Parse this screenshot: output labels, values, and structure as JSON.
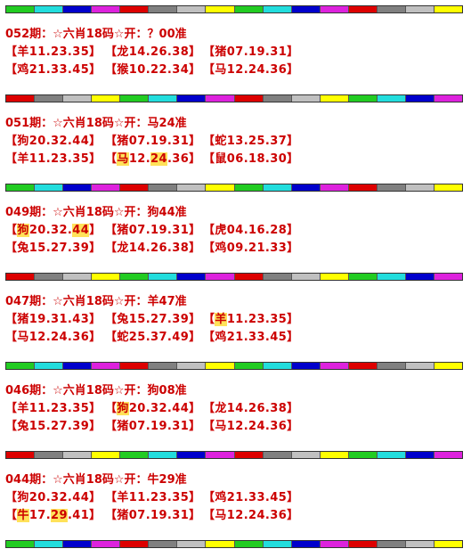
{
  "sections": [
    {
      "title": "052期：☆六肖18码☆开：？00准",
      "rows": [
        [
          [
            "【羊11.23.35】"
          ],
          [
            "【龙14.26.38】"
          ],
          [
            "【猪07.19.31】"
          ]
        ],
        [
          [
            "【鸡21.33.45】"
          ],
          [
            "【猴10.22.34】"
          ],
          [
            "【马12.24.36】"
          ]
        ]
      ]
    },
    {
      "title": "051期：☆六肖18码☆开：马24准",
      "rows": [
        [
          [
            "【狗20.32.44】"
          ],
          [
            "【猪07.19.31】"
          ],
          [
            "【蛇13.25.37】"
          ]
        ],
        [
          [
            "【羊11.23.35】"
          ],
          [
            "【",
            {
              "text": "马",
              "highlight": true
            },
            "12.",
            {
              "text": "24",
              "highlight": true
            },
            ".36】"
          ],
          [
            "【鼠06.18.30】"
          ]
        ]
      ]
    },
    {
      "title": "049期：☆六肖18码☆开：狗44准",
      "rows": [
        [
          [
            "【",
            {
              "text": "狗",
              "highlight": true
            },
            "20.32.",
            {
              "text": "44",
              "highlight": true
            },
            "】"
          ],
          [
            "【猪07.19.31】"
          ],
          [
            "【虎04.16.28】"
          ]
        ],
        [
          [
            "【兔15.27.39】"
          ],
          [
            "【龙14.26.38】"
          ],
          [
            "【鸡09.21.33】"
          ]
        ]
      ]
    },
    {
      "title": "047期：☆六肖18码☆开：羊47准",
      "rows": [
        [
          [
            "【猪19.31.43】"
          ],
          [
            "【兔15.27.39】"
          ],
          [
            "【",
            {
              "text": "羊",
              "highlight": true
            },
            "11.23.35】"
          ]
        ],
        [
          [
            "【马12.24.36】"
          ],
          [
            "【蛇25.37.49】"
          ],
          [
            "【鸡21.33.45】"
          ]
        ]
      ]
    },
    {
      "title": "046期：☆六肖18码☆开：狗08准",
      "rows": [
        [
          [
            "【羊11.23.35】"
          ],
          [
            "【",
            {
              "text": "狗",
              "highlight": true
            },
            "20.32.44】"
          ],
          [
            "【龙14.26.38】"
          ]
        ],
        [
          [
            "【兔15.27.39】"
          ],
          [
            "【猪07.19.31】"
          ],
          [
            "【马12.24.36】"
          ]
        ]
      ]
    },
    {
      "title": "044期：☆六肖18码☆开：牛29准",
      "rows": [
        [
          [
            "【狗20.32.44】"
          ],
          [
            "【羊11.23.35】"
          ],
          [
            "【鸡21.33.45】"
          ]
        ],
        [
          [
            "【",
            {
              "text": "牛",
              "highlight": true
            },
            "17.",
            {
              "text": "29",
              "highlight": true
            },
            ".41】"
          ],
          [
            "【猪07.19.31】"
          ],
          [
            "【马12.24.36】"
          ]
        ]
      ]
    }
  ]
}
